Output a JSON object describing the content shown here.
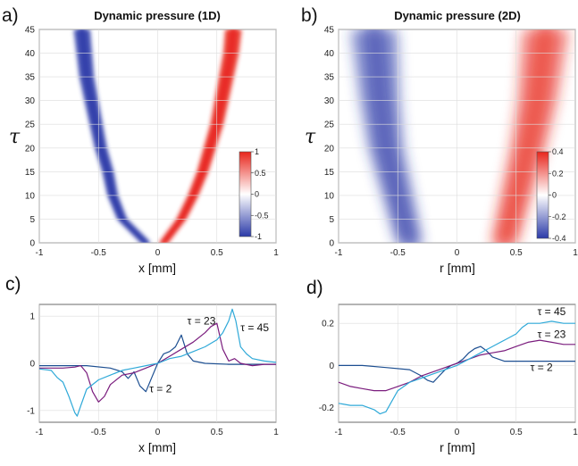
{
  "chart_data": [
    {
      "type": "heatmap",
      "panel_label": "a)",
      "title": "Dynamic pressure (1D)",
      "xlabel": "x [mm]",
      "ylabel": "τ",
      "xlim": [
        -1,
        1
      ],
      "ylim": [
        0,
        45
      ],
      "xticks": [
        "-1",
        "-0.5",
        "0",
        "0.5",
        "1"
      ],
      "yticks": [
        "0",
        "5",
        "10",
        "15",
        "20",
        "25",
        "30",
        "35",
        "40",
        "45"
      ],
      "colorbar": {
        "ticks": [
          "1",
          "0.5",
          "0",
          "-0.5",
          "-1"
        ],
        "vmin": -1,
        "vmax": 1,
        "colors": [
          "#2b3aa8",
          "#ffffff",
          "#e8251b"
        ]
      },
      "negative_band_center": [
        [
          0,
          -0.1
        ],
        [
          5,
          -0.3
        ],
        [
          10,
          -0.38
        ],
        [
          15,
          -0.42
        ],
        [
          20,
          -0.48
        ],
        [
          25,
          -0.52
        ],
        [
          30,
          -0.56
        ],
        [
          35,
          -0.6
        ],
        [
          40,
          -0.62
        ],
        [
          45,
          -0.64
        ]
      ],
      "positive_band_center": [
        [
          0,
          0.05
        ],
        [
          5,
          0.2
        ],
        [
          10,
          0.3
        ],
        [
          15,
          0.38
        ],
        [
          20,
          0.44
        ],
        [
          25,
          0.5
        ],
        [
          30,
          0.54
        ],
        [
          35,
          0.58
        ],
        [
          40,
          0.62
        ],
        [
          45,
          0.64
        ]
      ]
    },
    {
      "type": "heatmap",
      "panel_label": "b)",
      "title": "Dynamic pressure (2D)",
      "xlabel": "r [mm]",
      "ylabel": "τ",
      "xlim": [
        -1,
        1
      ],
      "ylim": [
        0,
        45
      ],
      "xticks": [
        "-1",
        "-0.5",
        "0",
        "0.5",
        "1"
      ],
      "yticks": [
        "0",
        "5",
        "10",
        "15",
        "20",
        "25",
        "30",
        "35",
        "40",
        "45"
      ],
      "colorbar": {
        "ticks": [
          "0.4",
          "0.2",
          "0",
          "-0.2",
          "-0.4"
        ],
        "vmin": -0.4,
        "vmax": 0.4,
        "colors": [
          "#2b3aa8",
          "#ffffff",
          "#e8251b"
        ]
      },
      "negative_band_center": [
        [
          0,
          -0.4
        ],
        [
          10,
          -0.5
        ],
        [
          20,
          -0.6
        ],
        [
          30,
          -0.65
        ],
        [
          45,
          -0.7
        ]
      ],
      "positive_band_center": [
        [
          0,
          0.4
        ],
        [
          10,
          0.5
        ],
        [
          20,
          0.6
        ],
        [
          30,
          0.68
        ],
        [
          45,
          0.75
        ]
      ]
    },
    {
      "type": "line",
      "panel_label": "c)",
      "xlabel": "x [mm]",
      "xlim": [
        -1,
        1
      ],
      "ylim": [
        -1.25,
        1.25
      ],
      "xticks": [
        "-1",
        "-0.5",
        "0",
        "0.5",
        "1"
      ],
      "yticks": [
        "1",
        "0",
        "-1"
      ],
      "series": [
        {
          "name": "τ = 2",
          "color": "#1d4f91",
          "x": [
            -1,
            -0.8,
            -0.6,
            -0.4,
            -0.3,
            -0.25,
            -0.2,
            -0.15,
            -0.1,
            -0.05,
            0,
            0.05,
            0.1,
            0.15,
            0.2,
            0.25,
            0.3,
            0.4,
            0.6,
            0.8,
            1
          ],
          "y": [
            -0.05,
            -0.05,
            -0.05,
            -0.1,
            -0.18,
            -0.32,
            -0.18,
            -0.48,
            -0.6,
            -0.3,
            0.0,
            0.2,
            0.25,
            0.35,
            0.6,
            0.2,
            0.05,
            0.0,
            -0.02,
            -0.02,
            -0.02
          ]
        },
        {
          "name": "τ = 23",
          "color": "#7a1c7d",
          "x": [
            -1,
            -0.8,
            -0.7,
            -0.65,
            -0.6,
            -0.55,
            -0.5,
            -0.45,
            -0.4,
            -0.3,
            -0.2,
            -0.1,
            0,
            0.1,
            0.2,
            0.3,
            0.4,
            0.45,
            0.5,
            0.55,
            0.6,
            0.65,
            0.7,
            0.8,
            0.9,
            1
          ],
          "y": [
            -0.1,
            -0.1,
            -0.08,
            -0.05,
            -0.2,
            -0.6,
            -0.82,
            -0.7,
            -0.45,
            -0.25,
            -0.2,
            -0.1,
            0.0,
            0.15,
            0.3,
            0.45,
            0.65,
            0.78,
            0.85,
            0.3,
            0.05,
            0.1,
            0.0,
            -0.05,
            -0.02,
            -0.02
          ]
        },
        {
          "name": "τ = 45",
          "color": "#2fa9d8",
          "x": [
            -1,
            -0.9,
            -0.85,
            -0.8,
            -0.75,
            -0.7,
            -0.68,
            -0.65,
            -0.6,
            -0.5,
            -0.4,
            -0.3,
            -0.2,
            -0.1,
            0,
            0.1,
            0.2,
            0.3,
            0.4,
            0.5,
            0.55,
            0.6,
            0.63,
            0.66,
            0.7,
            0.75,
            0.8,
            0.9,
            1
          ],
          "y": [
            -0.12,
            -0.15,
            -0.3,
            -0.4,
            -0.7,
            -1.05,
            -1.12,
            -0.9,
            -0.55,
            -0.35,
            -0.25,
            -0.15,
            -0.1,
            -0.05,
            0.0,
            0.1,
            0.15,
            0.25,
            0.35,
            0.5,
            0.65,
            0.9,
            1.15,
            0.9,
            0.35,
            0.2,
            0.1,
            0.05,
            0.02
          ]
        }
      ],
      "annotations": [
        {
          "text": "τ = 23",
          "x": 0.25,
          "y": 0.82
        },
        {
          "text": "τ = 45",
          "x": 0.7,
          "y": 0.68
        },
        {
          "text": "τ = 2",
          "x": -0.07,
          "y": -0.62
        }
      ]
    },
    {
      "type": "line",
      "panel_label": "d)",
      "xlabel": "r [mm]",
      "xlim": [
        -1,
        1
      ],
      "ylim": [
        -0.27,
        0.29
      ],
      "xticks": [
        "-1",
        "-0.5",
        "0",
        "0.5",
        "1"
      ],
      "yticks": [
        "0.2",
        "0",
        "-0.2"
      ],
      "series": [
        {
          "name": "τ = 2",
          "color": "#1d4f91",
          "x": [
            -1,
            -0.8,
            -0.6,
            -0.4,
            -0.3,
            -0.25,
            -0.2,
            -0.15,
            -0.1,
            -0.05,
            0,
            0.05,
            0.1,
            0.15,
            0.2,
            0.25,
            0.3,
            0.4,
            0.6,
            0.8,
            1
          ],
          "y": [
            0.0,
            0.0,
            -0.01,
            -0.02,
            -0.05,
            -0.07,
            -0.08,
            -0.05,
            -0.02,
            0.0,
            0.01,
            0.03,
            0.06,
            0.08,
            0.09,
            0.07,
            0.04,
            0.02,
            0.02,
            0.02,
            0.02
          ]
        },
        {
          "name": "τ = 23",
          "color": "#7a1c7d",
          "x": [
            -1,
            -0.9,
            -0.8,
            -0.7,
            -0.6,
            -0.5,
            -0.4,
            -0.3,
            -0.2,
            -0.1,
            0,
            0.1,
            0.2,
            0.3,
            0.4,
            0.5,
            0.6,
            0.7,
            0.8,
            0.9,
            1
          ],
          "y": [
            -0.08,
            -0.1,
            -0.11,
            -0.12,
            -0.12,
            -0.1,
            -0.08,
            -0.05,
            -0.03,
            -0.01,
            0.01,
            0.03,
            0.05,
            0.06,
            0.07,
            0.09,
            0.11,
            0.12,
            0.11,
            0.1,
            0.1
          ]
        },
        {
          "name": "τ = 45",
          "color": "#2fa9d8",
          "x": [
            -1,
            -0.9,
            -0.8,
            -0.7,
            -0.65,
            -0.6,
            -0.55,
            -0.5,
            -0.4,
            -0.3,
            -0.2,
            -0.1,
            0,
            0.1,
            0.2,
            0.3,
            0.4,
            0.5,
            0.55,
            0.6,
            0.7,
            0.8,
            0.9,
            1
          ],
          "y": [
            -0.18,
            -0.19,
            -0.19,
            -0.21,
            -0.23,
            -0.22,
            -0.17,
            -0.12,
            -0.08,
            -0.06,
            -0.04,
            -0.02,
            0.0,
            0.03,
            0.06,
            0.09,
            0.12,
            0.15,
            0.18,
            0.2,
            0.2,
            0.21,
            0.2,
            0.2
          ]
        }
      ],
      "annotations": [
        {
          "text": "τ = 45",
          "x": 0.68,
          "y": 0.24
        },
        {
          "text": "τ = 23",
          "x": 0.68,
          "y": 0.13
        },
        {
          "text": "τ = 2",
          "x": 0.62,
          "y": -0.025
        }
      ]
    }
  ]
}
